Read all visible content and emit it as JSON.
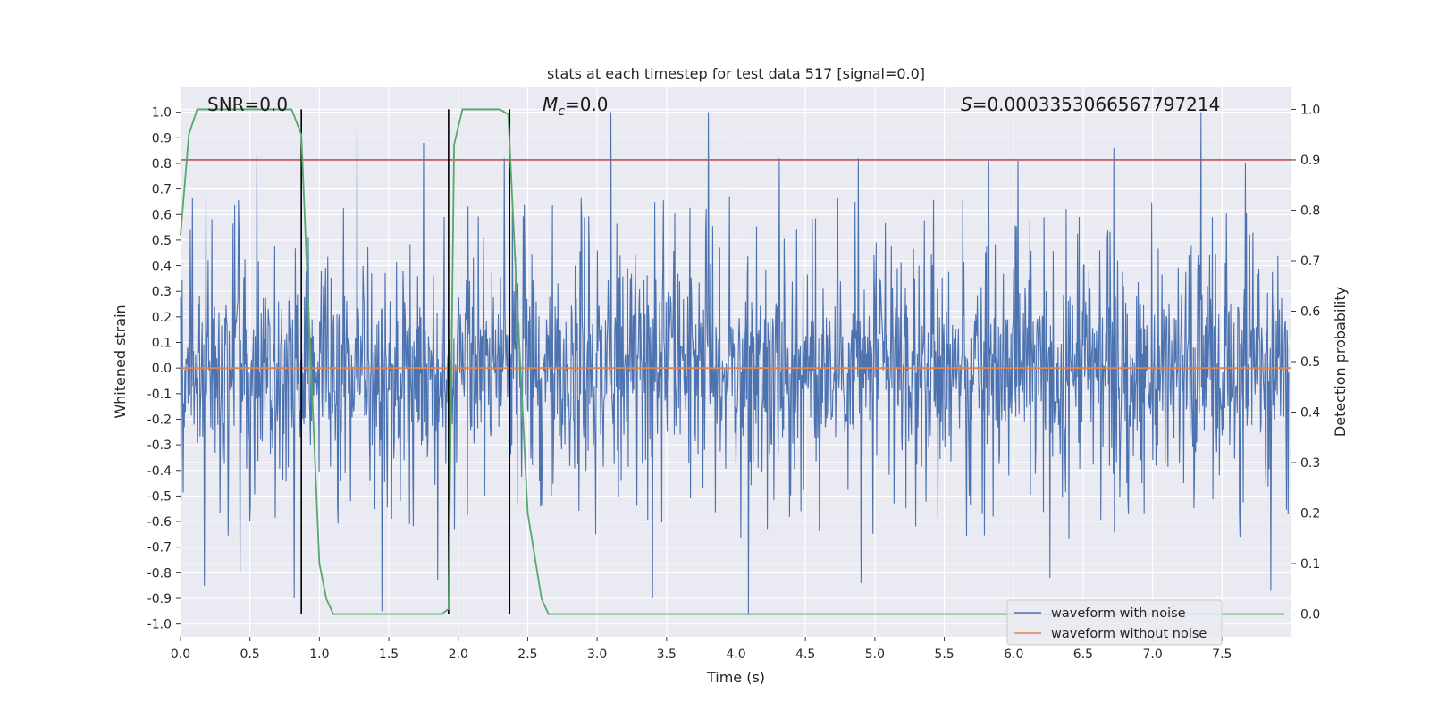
{
  "chart_data": {
    "type": "line",
    "title": "stats at each timestep for test data 517 [signal=0.0]",
    "xlabel": "Time (s)",
    "ylabel": "Whitened strain",
    "y2label": "Detection probability",
    "xlim": [
      0.0,
      8.0
    ],
    "ylim": [
      -1.05,
      1.1
    ],
    "y2lim": [
      -0.045,
      1.045
    ],
    "grid": true,
    "x_ticks": [
      "0.0",
      "0.5",
      "1.0",
      "1.5",
      "2.0",
      "2.5",
      "3.0",
      "3.5",
      "4.0",
      "4.5",
      "5.0",
      "5.5",
      "6.0",
      "6.5",
      "7.0",
      "7.5"
    ],
    "y_ticks": [
      "1.0",
      "0.9",
      "0.8",
      "0.7",
      "0.6",
      "0.5",
      "0.4",
      "0.3",
      "0.2",
      "0.1",
      "0.0",
      "-0.1",
      "-0.2",
      "-0.3",
      "-0.4",
      "-0.5",
      "-0.6",
      "-0.7",
      "-0.8",
      "-0.9",
      "-1.0"
    ],
    "y2_ticks": [
      "1.0",
      "0.9",
      "0.8",
      "0.7",
      "0.6",
      "0.5",
      "0.4",
      "0.3",
      "0.2",
      "0.1",
      "0.0"
    ],
    "annotations": {
      "snr": "SNR=0.0",
      "mc_symbol": "M",
      "mc_sub": "c",
      "mc_value": "=0.0",
      "s_symbol": "S",
      "s_value": "=0.0003353066567797214"
    },
    "legend": {
      "placement": "lower-right",
      "entries": [
        {
          "label": "waveform with noise",
          "color": "#4c72b0"
        },
        {
          "label": "waveform without noise",
          "color": "#dd8452"
        }
      ]
    },
    "series": [
      {
        "name": "waveform with noise",
        "axis": "left",
        "color": "#4c72b0",
        "envelope": {
          "typical_upper": 0.4,
          "typical_lower": -0.45,
          "max": 1.0,
          "min": -0.96
        },
        "spikes": [
          {
            "x": 0.55,
            "y": 0.83
          },
          {
            "x": 1.27,
            "y": 0.92
          },
          {
            "x": 1.75,
            "y": 0.88
          },
          {
            "x": 2.33,
            "y": 0.82
          },
          {
            "x": 3.1,
            "y": 1.0
          },
          {
            "x": 3.8,
            "y": 1.0
          },
          {
            "x": 4.31,
            "y": 0.82
          },
          {
            "x": 4.88,
            "y": 0.82
          },
          {
            "x": 5.82,
            "y": 0.81
          },
          {
            "x": 6.03,
            "y": 0.81
          },
          {
            "x": 6.72,
            "y": 0.86
          },
          {
            "x": 7.35,
            "y": 1.0
          },
          {
            "x": 7.67,
            "y": 0.8
          },
          {
            "x": 0.17,
            "y": -0.85
          },
          {
            "x": 0.43,
            "y": -0.8
          },
          {
            "x": 0.82,
            "y": -0.9
          },
          {
            "x": 1.45,
            "y": -0.95
          },
          {
            "x": 1.85,
            "y": -0.83
          },
          {
            "x": 3.4,
            "y": -0.9
          },
          {
            "x": 4.09,
            "y": -0.96
          },
          {
            "x": 4.9,
            "y": -0.84
          },
          {
            "x": 6.26,
            "y": -0.82
          },
          {
            "x": 7.85,
            "y": -0.87
          }
        ]
      },
      {
        "name": "waveform without noise",
        "axis": "left",
        "color": "#dd8452",
        "x": [
          0.0,
          8.0
        ],
        "y": [
          0.0,
          0.0
        ]
      },
      {
        "name": "",
        "axis": "right",
        "color": "#55a868",
        "x": [
          0.0,
          0.06,
          0.12,
          0.2,
          0.5,
          0.8,
          0.87,
          0.93,
          1.0,
          1.05,
          1.1,
          1.15,
          1.3,
          1.6,
          1.88,
          1.93,
          1.97,
          2.03,
          2.08,
          2.3,
          2.36,
          2.41,
          2.5,
          2.6,
          2.65,
          3.0,
          4.0,
          5.0,
          6.0,
          7.0,
          7.95
        ],
        "y": [
          0.75,
          0.95,
          1.0,
          1.0,
          1.0,
          1.0,
          0.95,
          0.55,
          0.1,
          0.03,
          0.0,
          0.0,
          0.0,
          0.0,
          0.0,
          0.01,
          0.93,
          1.0,
          1.0,
          1.0,
          0.99,
          0.7,
          0.2,
          0.03,
          0.0,
          0.0,
          0.0,
          0.0,
          0.0,
          0.0,
          0.0
        ]
      }
    ],
    "threshold_line": {
      "axis": "right",
      "y": 0.9,
      "color": "#c44e52"
    },
    "vertical_lines": {
      "x": [
        0.87,
        1.93,
        2.37
      ],
      "y_range": [
        0.0,
        1.0
      ],
      "color": "#000000"
    }
  }
}
